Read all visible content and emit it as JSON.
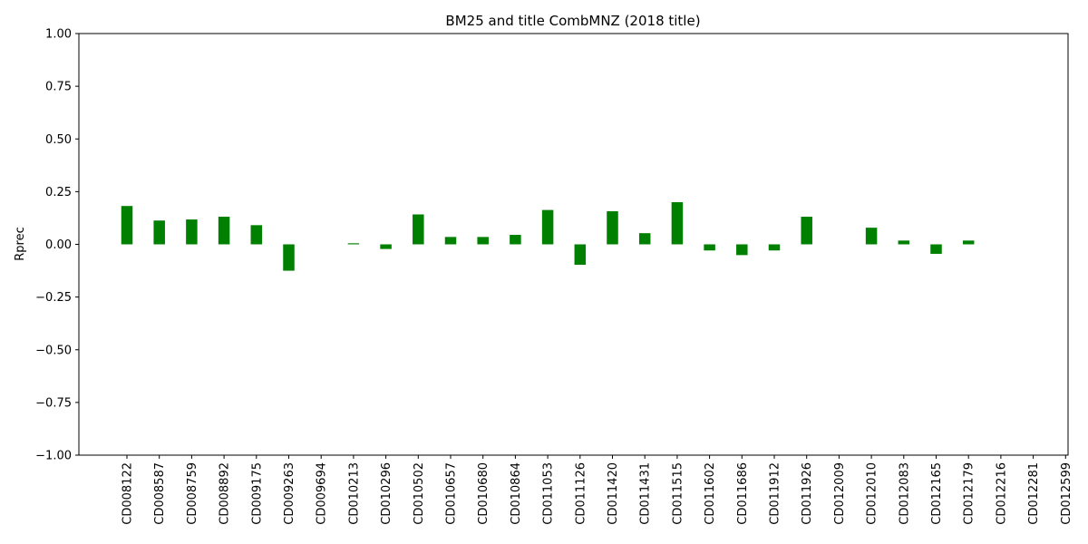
{
  "chart_data": {
    "type": "bar",
    "title": "BM25 and title CombMNZ (2018 title)",
    "xlabel": "",
    "ylabel": "Rprec",
    "ylim": [
      -1.0,
      1.0
    ],
    "yticks": [
      "1.00",
      "0.75",
      "0.50",
      "0.25",
      "0.00",
      "−0.25",
      "−0.50",
      "−0.75",
      "−1.00"
    ],
    "ytick_values": [
      1.0,
      0.75,
      0.5,
      0.25,
      0.0,
      -0.25,
      -0.5,
      -0.75,
      -1.0
    ],
    "grid": false,
    "bar_color": "#008000",
    "categories": [
      "CD008122",
      "CD008587",
      "CD008759",
      "CD008892",
      "CD009175",
      "CD009263",
      "CD009694",
      "CD010213",
      "CD010296",
      "CD010502",
      "CD010657",
      "CD010680",
      "CD010864",
      "CD011053",
      "CD011126",
      "CD011420",
      "CD011431",
      "CD011515",
      "CD011602",
      "CD011686",
      "CD011912",
      "CD011926",
      "CD012009",
      "CD012010",
      "CD012083",
      "CD012165",
      "CD012179",
      "CD012216",
      "CD012281",
      "CD012599"
    ],
    "values": [
      0.182,
      0.113,
      0.118,
      0.131,
      0.091,
      -0.125,
      0.0,
      0.005,
      -0.022,
      0.142,
      0.035,
      0.035,
      0.045,
      0.163,
      -0.097,
      0.157,
      0.053,
      0.2,
      -0.029,
      -0.051,
      -0.029,
      0.131,
      0.0,
      0.079,
      0.018,
      -0.045,
      0.018,
      0.0,
      0.0,
      0.0
    ]
  }
}
